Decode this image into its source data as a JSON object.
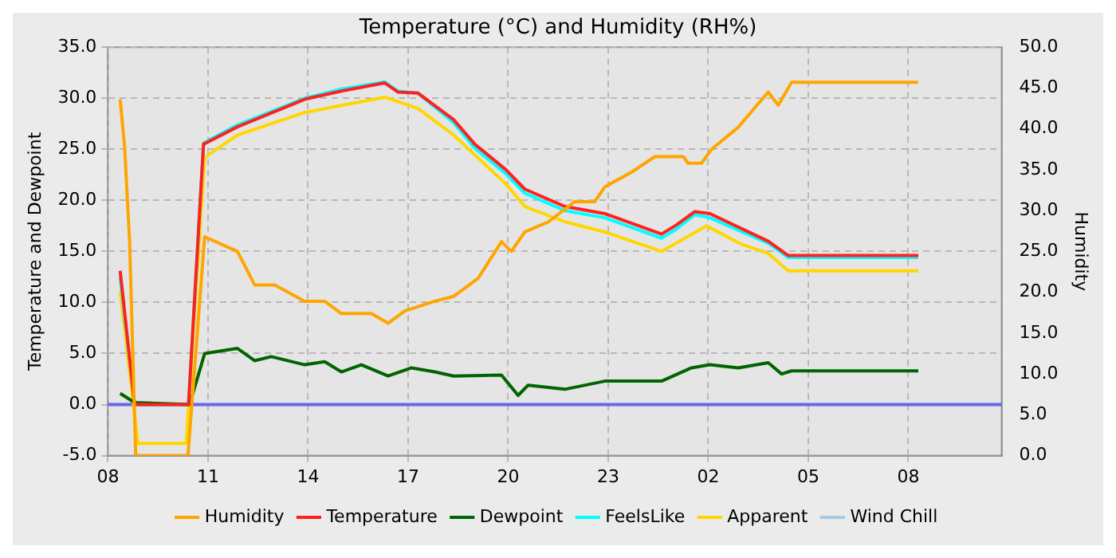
{
  "chart_data": {
    "type": "line",
    "title": "Temperature (°C) and Humidity (RH%)",
    "ylabel": "Temperature and Dewpoint",
    "y2label": "Humidity",
    "xlim": [
      "--06-01T08:00",
      "--06-02T10:48"
    ],
    "xticks": [
      {
        "value": "--06-01T08:00",
        "label": "08"
      },
      {
        "value": "--06-01T11:00",
        "label": "11"
      },
      {
        "value": "--06-01T14:00",
        "label": "14"
      },
      {
        "value": "--06-01T17:00",
        "label": "17"
      },
      {
        "value": "--06-01T20:00",
        "label": "20"
      },
      {
        "value": "--06-01T23:00",
        "label": "23"
      },
      {
        "value": "--06-02T02:00",
        "label": "02"
      },
      {
        "value": "--06-02T05:00",
        "label": "05"
      },
      {
        "value": "--06-02T08:00",
        "label": "08"
      }
    ],
    "ylim": [
      -5,
      35
    ],
    "yticks": [
      {
        "value": -5,
        "label": "-5.0"
      },
      {
        "value": 0,
        "label": "0.0"
      },
      {
        "value": 5,
        "label": "5.0"
      },
      {
        "value": 10,
        "label": "10.0"
      },
      {
        "value": 15,
        "label": "15.0"
      },
      {
        "value": 20,
        "label": "20.0"
      },
      {
        "value": 25,
        "label": "25.0"
      },
      {
        "value": 30,
        "label": "30.0"
      },
      {
        "value": 35,
        "label": "35.0"
      }
    ],
    "y2lim": [
      0,
      50
    ],
    "y2ticks": [
      {
        "value": 0,
        "label": "0.0"
      },
      {
        "value": 5,
        "label": "5.0"
      },
      {
        "value": 10,
        "label": "10.0"
      },
      {
        "value": 15,
        "label": "15.0"
      },
      {
        "value": 20,
        "label": "20.0"
      },
      {
        "value": 25,
        "label": "25.0"
      },
      {
        "value": 30,
        "label": "30.0"
      },
      {
        "value": 35,
        "label": "35.0"
      },
      {
        "value": 40,
        "label": "40.0"
      },
      {
        "value": 45,
        "label": "45.0"
      },
      {
        "value": 50,
        "label": "50.0"
      }
    ],
    "grid": true,
    "legend": "bottom",
    "marker": "none",
    "line_style": "solid",
    "ref_lines": [
      {
        "axis": "y",
        "value": 0,
        "color": "#6666ee"
      }
    ],
    "series": [
      {
        "name": "Humidity",
        "color": "#ffa500",
        "axis": "y2",
        "x": [
          "--06-01T08:22",
          "--06-01T08:30",
          "--06-01T08:39",
          "--06-01T08:50",
          "--06-01T10:24",
          "--06-01T10:54",
          "--06-01T11:53",
          "--06-01T12:24",
          "--06-01T13:00",
          "--06-01T13:54",
          "--06-01T14:30",
          "--06-01T15:00",
          "--06-01T15:54",
          "--06-01T16:24",
          "--06-01T16:54",
          "--06-01T17:48",
          "--06-01T18:22",
          "--06-01T19:06",
          "--06-01T19:48",
          "--06-01T20:06",
          "--06-01T20:30",
          "--06-01T21:12",
          "--06-01T22:00",
          "--06-01T22:36",
          "--06-01T22:54",
          "--06-01T23:42",
          "--06-02T00:24",
          "--06-02T01:15",
          "--06-02T01:24",
          "--06-02T01:48",
          "--06-02T02:06",
          "--06-02T02:54",
          "--06-02T03:24",
          "--06-02T03:48",
          "--06-02T04:06",
          "--06-02T04:30",
          "--06-02T08:18"
        ],
        "values": [
          43.6,
          37.8,
          26.3,
          0,
          0,
          26.8,
          25.0,
          20.9,
          20.9,
          18.9,
          18.9,
          17.4,
          17.4,
          16.2,
          17.7,
          18.9,
          19.5,
          21.7,
          26.2,
          25.0,
          27.4,
          28.6,
          31.1,
          31.1,
          32.9,
          34.7,
          36.6,
          36.6,
          35.8,
          35.8,
          37.5,
          40.2,
          42.6,
          44.5,
          42.9,
          45.7,
          45.7
        ]
      },
      {
        "name": "Temperature",
        "color": "#ff2020",
        "x": [
          "--06-01T08:22",
          "--06-01T08:48",
          "--06-01T10:25",
          "--06-01T10:52",
          "--06-01T11:53",
          "--06-01T13:54",
          "--06-01T15:00",
          "--06-01T16:18",
          "--06-01T16:42",
          "--06-01T17:18",
          "--06-01T18:22",
          "--06-01T19:00",
          "--06-01T19:56",
          "--06-01T20:30",
          "--06-01T21:42",
          "--06-01T22:54",
          "--06-02T00:36",
          "--06-02T01:03",
          "--06-02T01:36",
          "--06-02T02:03",
          "--06-02T03:48",
          "--06-02T04:24",
          "--06-02T08:18"
        ],
        "values": [
          13.1,
          0,
          0,
          25.5,
          27.2,
          29.9,
          30.7,
          31.5,
          30.6,
          30.5,
          27.9,
          25.5,
          23.0,
          21.1,
          19.4,
          18.7,
          16.7,
          17.6,
          18.9,
          18.7,
          16.0,
          14.6,
          14.6
        ]
      },
      {
        "name": "Dewpoint",
        "color": "#006400",
        "x": [
          "--06-01T08:22",
          "--06-01T08:48",
          "--06-01T10:27",
          "--06-01T10:54",
          "--06-01T11:53",
          "--06-01T12:24",
          "--06-01T12:54",
          "--06-01T13:54",
          "--06-01T14:30",
          "--06-01T15:00",
          "--06-01T15:36",
          "--06-01T16:24",
          "--06-01T17:06",
          "--06-01T17:48",
          "--06-01T18:22",
          "--06-01T19:48",
          "--06-01T20:18",
          "--06-01T20:36",
          "--06-01T21:42",
          "--06-01T22:54",
          "--06-02T00:36",
          "--06-02T01:30",
          "--06-02T02:03",
          "--06-02T02:54",
          "--06-02T03:48",
          "--06-02T04:12",
          "--06-02T04:30",
          "--06-02T08:18"
        ],
        "values": [
          1.1,
          0.2,
          0,
          5.0,
          5.5,
          4.3,
          4.7,
          3.9,
          4.2,
          3.2,
          3.9,
          2.8,
          3.6,
          3.2,
          2.8,
          2.9,
          0.9,
          1.9,
          1.5,
          2.3,
          2.3,
          3.6,
          3.9,
          3.6,
          4.1,
          3.0,
          3.3,
          3.3
        ]
      },
      {
        "name": "FeelsLike",
        "color": "#00ffff",
        "x": [
          "--06-01T08:22",
          "--06-01T08:48",
          "--06-01T10:25",
          "--06-01T10:52",
          "--06-01T11:53",
          "--06-01T13:54",
          "--06-01T15:00",
          "--06-01T16:18",
          "--06-01T16:42",
          "--06-01T17:18",
          "--06-01T18:22",
          "--06-01T19:00",
          "--06-01T19:56",
          "--06-01T20:30",
          "--06-01T21:42",
          "--06-01T22:54",
          "--06-02T00:36",
          "--06-02T01:03",
          "--06-02T01:36",
          "--06-02T02:03",
          "--06-02T03:48",
          "--06-02T04:24",
          "--06-02T08:18"
        ],
        "values": [
          12.5,
          0,
          0,
          25.6,
          27.4,
          30.0,
          30.9,
          31.6,
          30.7,
          30.5,
          27.6,
          25.1,
          22.6,
          20.7,
          19.0,
          18.3,
          16.3,
          17.2,
          18.6,
          18.3,
          15.8,
          14.4,
          14.4
        ]
      },
      {
        "name": "Apparent",
        "color": "#ffd700",
        "x": [
          "--06-01T08:22",
          "--06-01T08:54",
          "--06-01T10:21",
          "--06-01T10:54",
          "--06-01T11:53",
          "--06-01T13:54",
          "--06-01T15:00",
          "--06-01T16:18",
          "--06-01T17:18",
          "--06-01T18:22",
          "--06-01T19:56",
          "--06-01T20:30",
          "--06-01T21:42",
          "--06-01T22:54",
          "--06-02T00:36",
          "--06-02T01:57",
          "--06-02T03:00",
          "--06-02T03:48",
          "--06-02T04:24",
          "--06-02T08:18"
        ],
        "values": [
          11.1,
          -3.8,
          -3.8,
          24.2,
          26.4,
          28.6,
          29.3,
          30.1,
          29.0,
          26.4,
          21.6,
          19.4,
          17.9,
          16.9,
          15.0,
          17.5,
          15.7,
          14.8,
          13.1,
          13.1
        ]
      },
      {
        "name": "Wind Chill",
        "color": "#a6cae0"
      }
    ]
  }
}
